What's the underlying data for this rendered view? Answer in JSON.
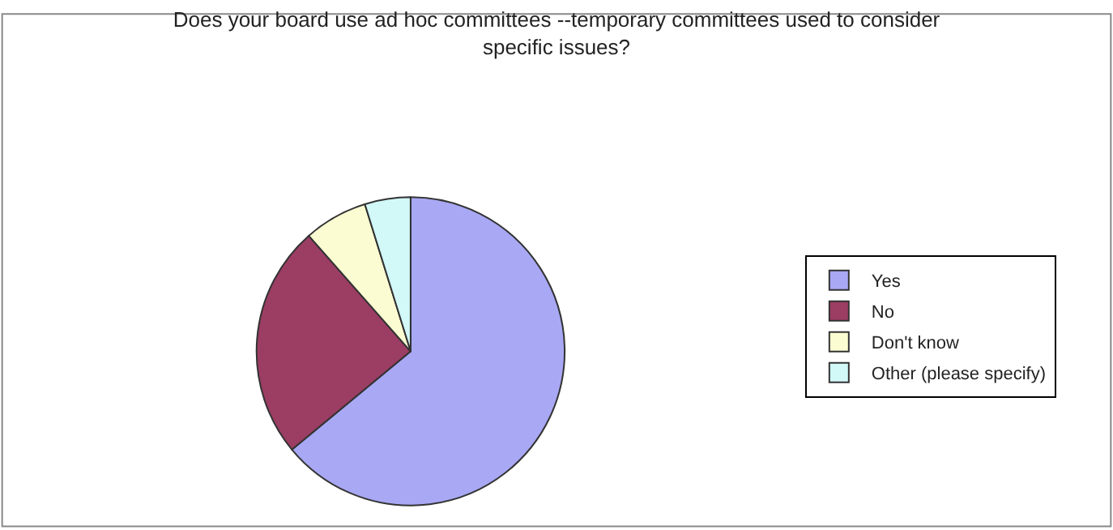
{
  "chart_data": {
    "type": "pie",
    "title": "Does your board use ad hoc committees --temporary committees used to consider specific issues?",
    "categories": [
      "Yes",
      "No",
      "Don't know",
      "Other (please specify)"
    ],
    "values": [
      64,
      24.5,
      6.7,
      4.8
    ],
    "colors": [
      "#a8a8f4",
      "#9c3d64",
      "#fcfcd2",
      "#d2f8f8"
    ],
    "legend": "right"
  }
}
